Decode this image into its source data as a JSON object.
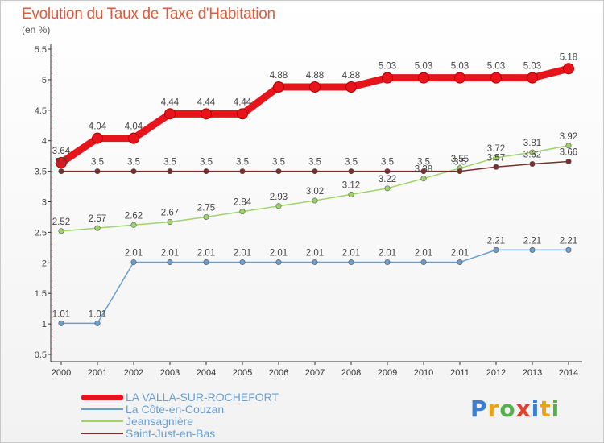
{
  "title": "Evolution du Taux de Taxe d'Habitation",
  "unit_label": "(en %)",
  "logo_text": "Proxiti",
  "chart_data": {
    "type": "line",
    "title": "Evolution du Taux de Taxe d'Habitation",
    "ylabel": "(en %)",
    "xlabel": "",
    "ylim": [
      0.5,
      5.5
    ],
    "yticks": [
      "0.5",
      "1",
      "1.5",
      "2",
      "2.5",
      "3",
      "3.5",
      "4",
      "4.5",
      "5",
      "5.5"
    ],
    "grid": false,
    "legend_position": "bottom-left",
    "categories": [
      "2000",
      "2001",
      "2002",
      "2003",
      "2004",
      "2005",
      "2006",
      "2007",
      "2008",
      "2009",
      "2010",
      "2011",
      "2012",
      "2013",
      "2014"
    ],
    "series": [
      {
        "name": "LA VALLA-SUR-ROCHEFORT",
        "color": "#e8141c",
        "values": [
          3.64,
          4.04,
          4.04,
          4.44,
          4.44,
          4.44,
          4.88,
          4.88,
          4.88,
          5.03,
          5.03,
          5.03,
          5.03,
          5.03,
          5.18
        ],
        "labels": [
          "3.64",
          "4.04",
          "4.04",
          "4.44",
          "4.44",
          "4.44",
          "4.88",
          "4.88",
          "4.88",
          "5.03",
          "5.03",
          "5.03",
          "5.03",
          "5.03",
          "5.18"
        ]
      },
      {
        "name": "La Côte-en-Couzan",
        "color": "#6a9fd0",
        "values": [
          1.01,
          1.01,
          2.01,
          2.01,
          2.01,
          2.01,
          2.01,
          2.01,
          2.01,
          2.01,
          2.01,
          2.01,
          2.21,
          2.21,
          2.21
        ],
        "labels": [
          "1.01",
          "1.01",
          "2.01",
          "2.01",
          "2.01",
          "2.01",
          "2.01",
          "2.01",
          "2.01",
          "2.01",
          "2.01",
          "2.01",
          "2.21",
          "2.21",
          "2.21"
        ]
      },
      {
        "name": "Jeansagnière",
        "color": "#9ed46a",
        "values": [
          2.52,
          2.57,
          2.62,
          2.67,
          2.75,
          2.84,
          2.93,
          3.02,
          3.12,
          3.22,
          3.38,
          3.55,
          3.72,
          3.81,
          3.92
        ],
        "labels": [
          "2.52",
          "2.57",
          "2.62",
          "2.67",
          "2.75",
          "2.84",
          "2.93",
          "3.02",
          "3.12",
          "3.22",
          "3.38",
          "3.55",
          "3.72",
          "3.81",
          "3.92"
        ]
      },
      {
        "name": "Saint-Just-en-Bas",
        "color": "#7a2e2e",
        "values": [
          3.5,
          3.5,
          3.5,
          3.5,
          3.5,
          3.5,
          3.5,
          3.5,
          3.5,
          3.5,
          3.5,
          3.5,
          3.57,
          3.62,
          3.66
        ],
        "labels": [
          "3.5",
          "3.5",
          "3.5",
          "3.5",
          "3.5",
          "3.5",
          "3.5",
          "3.5",
          "3.5",
          "3.5",
          "3.5",
          "3.5",
          "3.57",
          "3.62",
          "3.66"
        ]
      }
    ]
  }
}
